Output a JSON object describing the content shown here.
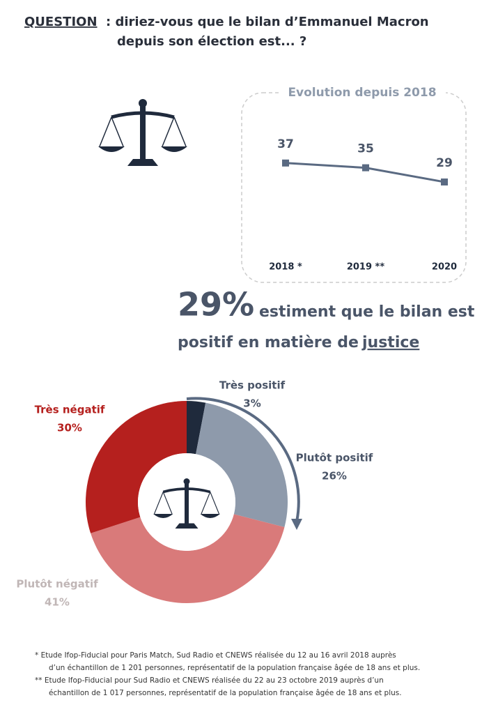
{
  "header": {
    "label": "QUESTION",
    "line1": ": diriez-vous que le bilan d’Emmanuel Macron",
    "line2": "depuis son élection est... ?"
  },
  "headline": {
    "figure": "29%",
    "line1": "estiment que le bilan est",
    "line2": "positif en matière de",
    "keyword": "justice"
  },
  "chart_data": [
    {
      "type": "line",
      "title": "Evolution depuis 2018",
      "categories": [
        "2018 *",
        "2019 **",
        "2020"
      ],
      "values": [
        37,
        35,
        29
      ],
      "color": "#5a6a82"
    },
    {
      "type": "pie",
      "categories": [
        "Très positif",
        "Plutôt positif",
        "Plutôt négatif",
        "Très négatif"
      ],
      "values": [
        3,
        26,
        41,
        30
      ],
      "value_labels": [
        "3%",
        "26%",
        "41%",
        "30%"
      ],
      "colors": [
        "#1f2a3c",
        "#8e9aab",
        "#d97a7a",
        "#b5201e"
      ],
      "label_colors": [
        "#4a5568",
        "#4a5568",
        "#c0b6b6",
        "#b5201e"
      ]
    }
  ],
  "footnotes": [
    [
      "* Etude Ifop-Fiducial pour Paris Match, Sud Radio et CNEWS réalisée du 12 au 16 avril 2018 auprès",
      "d’un échantillon de 1 201 personnes, représentatif de la population française âgée de 18 ans et plus."
    ],
    [
      "** Etude Ifop-Fiducial pour Sud Radio et CNEWS réalisée du 22 au 23 octobre 2019 auprès d’un",
      "échantillon de 1 017 personnes, représentatif de la population française âgée de 18 ans et plus."
    ]
  ]
}
